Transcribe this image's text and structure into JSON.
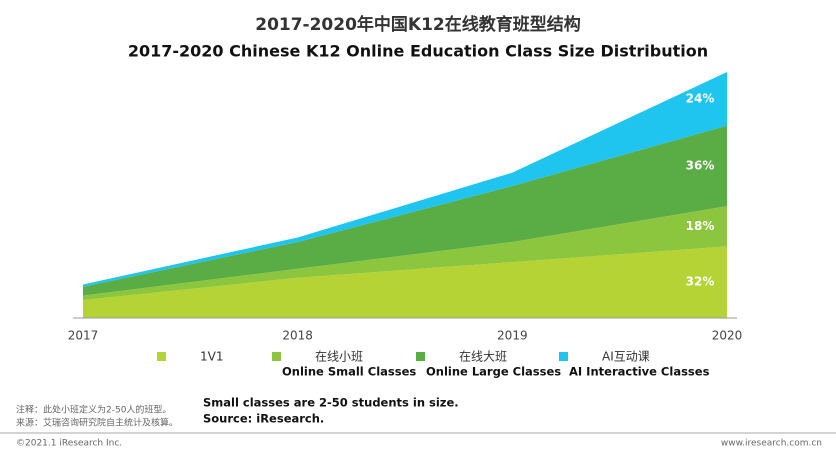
{
  "chart_data": {
    "type": "stacked_area",
    "title": "2017-2020年中国K12在线教育班型结构",
    "subtitle": "2017-2020 Chinese K12 Online Education Class Size Distribution",
    "categories": [
      "2017",
      "2018",
      "2019",
      "2020"
    ],
    "ylim": [
      0,
      110
    ],
    "series": [
      {
        "name": "1V1",
        "color": "#b5d334",
        "values": [
          8,
          18,
          25,
          32
        ],
        "value_labels": [
          null,
          null,
          null,
          "32%"
        ]
      },
      {
        "name": "在线小班",
        "name_en": "Online Small Classes",
        "color": "#8cc63f",
        "values": [
          2,
          4,
          9,
          18
        ],
        "value_labels": [
          null,
          null,
          null,
          "18%"
        ]
      },
      {
        "name": "在线大班",
        "name_en": "Online Large Classes",
        "color": "#5aac44",
        "values": [
          4,
          12,
          25,
          36
        ],
        "value_labels": [
          null,
          null,
          null,
          "36%"
        ]
      },
      {
        "name": "AI互动课",
        "name_en": "AI Interactive Classes",
        "color": "#1fc4ef",
        "values": [
          1,
          2,
          6,
          24
        ],
        "value_labels": [
          null,
          null,
          null,
          "24%"
        ]
      }
    ]
  },
  "notes": {
    "zh": [
      "注释：此处小班定义为2-50人的班型。",
      "来源：艾瑞咨询研究院自主统计及核算。"
    ],
    "en": [
      "Small classes are 2-50 students in size.",
      "Source: iResearch."
    ]
  },
  "footer": {
    "left": "©2021.1 iResearch Inc.",
    "right": "www.iresearch.com.cn"
  }
}
